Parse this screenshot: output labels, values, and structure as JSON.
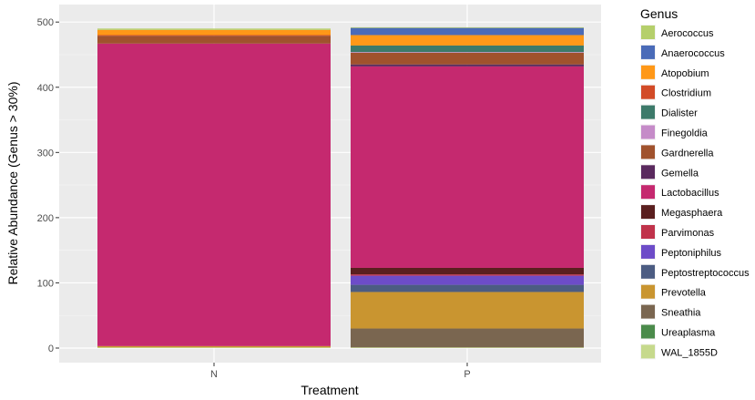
{
  "chart_data": {
    "type": "bar",
    "stacked": true,
    "title": "",
    "xlabel": "Treatment",
    "ylabel": "Relative Abundance (Genus > 30%)",
    "categories": [
      "N",
      "P"
    ],
    "ylim": [
      0,
      520
    ],
    "yticks": [
      0,
      100,
      200,
      300,
      400,
      500
    ],
    "grid": true,
    "legend_title": "Genus",
    "legend_position": "right",
    "series": [
      {
        "name": "Aerococcus",
        "color": "#b5cf6b",
        "values": [
          2,
          1
        ]
      },
      {
        "name": "Anaerococcus",
        "color": "#4a6bb8",
        "values": [
          0,
          11
        ]
      },
      {
        "name": "Atopobium",
        "color": "#ff9818",
        "values": [
          8,
          16
        ]
      },
      {
        "name": "Clostridium",
        "color": "#d24b27",
        "values": [
          1,
          0
        ]
      },
      {
        "name": "Dialister",
        "color": "#3d7a6a",
        "values": [
          0,
          10
        ]
      },
      {
        "name": "Finegoldia",
        "color": "#c58bc8",
        "values": [
          0,
          1
        ]
      },
      {
        "name": "Gardnerella",
        "color": "#a0522d",
        "values": [
          12,
          18
        ]
      },
      {
        "name": "Gemella",
        "color": "#5a2a5e",
        "values": [
          0,
          3
        ]
      },
      {
        "name": "Lactobacillus",
        "color": "#c5296f",
        "values": [
          464,
          309
        ]
      },
      {
        "name": "Megasphaera",
        "color": "#5a1f1f",
        "values": [
          0,
          10
        ]
      },
      {
        "name": "Parvimonas",
        "color": "#c0334b",
        "values": [
          0,
          2
        ]
      },
      {
        "name": "Peptoniphilus",
        "color": "#6d4cc8",
        "values": [
          0,
          14
        ]
      },
      {
        "name": "Peptostreptococcus",
        "color": "#4c5c82",
        "values": [
          0,
          11
        ]
      },
      {
        "name": "Prevotella",
        "color": "#c99530",
        "values": [
          2,
          56
        ]
      },
      {
        "name": "Sneathia",
        "color": "#7a6650",
        "values": [
          0,
          29
        ]
      },
      {
        "name": "Ureaplasma",
        "color": "#4b8b4b",
        "values": [
          0,
          0
        ]
      },
      {
        "name": "WAL_1855D",
        "color": "#c6d98c",
        "values": [
          1,
          1
        ]
      }
    ]
  }
}
